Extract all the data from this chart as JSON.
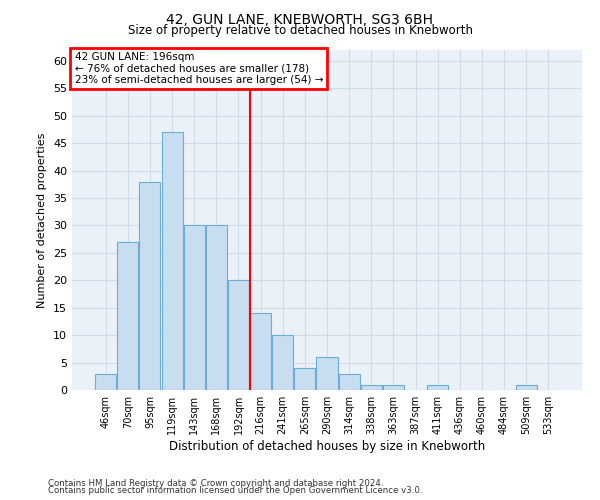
{
  "title": "42, GUN LANE, KNEBWORTH, SG3 6BH",
  "subtitle": "Size of property relative to detached houses in Knebworth",
  "xlabel": "Distribution of detached houses by size in Knebworth",
  "ylabel": "Number of detached properties",
  "bar_labels": [
    "46sqm",
    "70sqm",
    "95sqm",
    "119sqm",
    "143sqm",
    "168sqm",
    "192sqm",
    "216sqm",
    "241sqm",
    "265sqm",
    "290sqm",
    "314sqm",
    "338sqm",
    "363sqm",
    "387sqm",
    "411sqm",
    "436sqm",
    "460sqm",
    "484sqm",
    "509sqm",
    "533sqm"
  ],
  "bar_values": [
    3,
    27,
    38,
    47,
    30,
    30,
    20,
    14,
    10,
    4,
    6,
    3,
    1,
    1,
    0,
    1,
    0,
    0,
    0,
    1,
    0
  ],
  "bar_color": "#c9ddf0",
  "bar_edge_color": "#6aaed6",
  "vline_x": 6.5,
  "vline_color": "red",
  "annotation_title": "42 GUN LANE: 196sqm",
  "annotation_line1": "← 76% of detached houses are smaller (178)",
  "annotation_line2": "23% of semi-detached houses are larger (54) →",
  "annotation_box_color": "red",
  "ylim": [
    0,
    62
  ],
  "yticks": [
    0,
    5,
    10,
    15,
    20,
    25,
    30,
    35,
    40,
    45,
    50,
    55,
    60
  ],
  "grid_color": "#d0dce8",
  "background_color": "#eaf1f8",
  "footnote1": "Contains HM Land Registry data © Crown copyright and database right 2024.",
  "footnote2": "Contains public sector information licensed under the Open Government Licence v3.0."
}
